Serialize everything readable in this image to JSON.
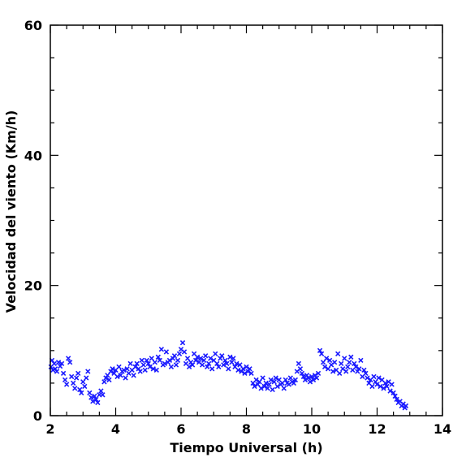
{
  "chart_data": {
    "type": "scatter",
    "title": "",
    "xlabel": "Tiempo Universal (h)",
    "ylabel": "Velocidad del viento (Km/h)",
    "xlim": [
      2,
      14
    ],
    "ylim": [
      0,
      60
    ],
    "xticks": [
      2,
      4,
      6,
      8,
      10,
      12,
      14
    ],
    "yticks": [
      0,
      20,
      40,
      60
    ],
    "x_minor_step": 0.5,
    "y_minor_step": 5,
    "marker": "x",
    "marker_color": "#1a1aff",
    "grid": false,
    "series": [
      {
        "points": [
          [
            2.02,
            7.5
          ],
          [
            2.05,
            8.5
          ],
          [
            2.08,
            7.0
          ],
          [
            2.12,
            8.0
          ],
          [
            2.15,
            7.2
          ],
          [
            2.2,
            6.8
          ],
          [
            2.25,
            8.2
          ],
          [
            2.3,
            7.6
          ],
          [
            2.35,
            8.0
          ],
          [
            2.4,
            6.5
          ],
          [
            2.45,
            5.5
          ],
          [
            2.5,
            4.8
          ],
          [
            2.55,
            8.8
          ],
          [
            2.6,
            8.2
          ],
          [
            2.65,
            6.0
          ],
          [
            2.7,
            5.0
          ],
          [
            2.75,
            4.2
          ],
          [
            2.8,
            5.8
          ],
          [
            2.85,
            6.5
          ],
          [
            2.9,
            4.0
          ],
          [
            2.95,
            3.5
          ],
          [
            3.0,
            5.2
          ],
          [
            3.05,
            4.5
          ],
          [
            3.1,
            5.8
          ],
          [
            3.15,
            6.8
          ],
          [
            3.2,
            3.5
          ],
          [
            3.25,
            2.8
          ],
          [
            3.3,
            2.2
          ],
          [
            3.35,
            3.0
          ],
          [
            3.4,
            2.5
          ],
          [
            3.45,
            2.0
          ],
          [
            3.5,
            3.2
          ],
          [
            3.55,
            3.8
          ],
          [
            3.6,
            3.2
          ],
          [
            3.65,
            5.2
          ],
          [
            3.7,
            5.8
          ],
          [
            3.75,
            6.2
          ],
          [
            3.8,
            5.5
          ],
          [
            3.85,
            6.8
          ],
          [
            3.9,
            7.2
          ],
          [
            3.95,
            6.5
          ],
          [
            4.0,
            7.0
          ],
          [
            4.05,
            6.0
          ],
          [
            4.1,
            7.5
          ],
          [
            4.15,
            6.2
          ],
          [
            4.2,
            6.8
          ],
          [
            4.25,
            7.0
          ],
          [
            4.3,
            5.8
          ],
          [
            4.35,
            7.2
          ],
          [
            4.4,
            6.5
          ],
          [
            4.45,
            8.0
          ],
          [
            4.5,
            7.0
          ],
          [
            4.55,
            6.2
          ],
          [
            4.6,
            7.5
          ],
          [
            4.65,
            8.0
          ],
          [
            4.7,
            7.2
          ],
          [
            4.75,
            6.8
          ],
          [
            4.8,
            8.5
          ],
          [
            4.85,
            7.8
          ],
          [
            4.9,
            7.0
          ],
          [
            4.95,
            8.5
          ],
          [
            5.0,
            8.0
          ],
          [
            5.05,
            7.5
          ],
          [
            5.1,
            8.8
          ],
          [
            5.15,
            7.2
          ],
          [
            5.2,
            8.2
          ],
          [
            5.25,
            7.0
          ],
          [
            5.3,
            9.0
          ],
          [
            5.35,
            8.5
          ],
          [
            5.4,
            10.2
          ],
          [
            5.45,
            7.8
          ],
          [
            5.5,
            8.0
          ],
          [
            5.55,
            9.8
          ],
          [
            5.6,
            8.2
          ],
          [
            5.65,
            8.5
          ],
          [
            5.7,
            7.5
          ],
          [
            5.75,
            8.8
          ],
          [
            5.8,
            9.2
          ],
          [
            5.85,
            7.8
          ],
          [
            5.9,
            8.5
          ],
          [
            5.95,
            9.5
          ],
          [
            6.0,
            10.2
          ],
          [
            6.05,
            11.2
          ],
          [
            6.1,
            9.8
          ],
          [
            6.15,
            8.0
          ],
          [
            6.2,
            8.8
          ],
          [
            6.25,
            7.5
          ],
          [
            6.3,
            8.2
          ],
          [
            6.35,
            7.8
          ],
          [
            6.4,
            9.5
          ],
          [
            6.45,
            8.5
          ],
          [
            6.5,
            9.0
          ],
          [
            6.55,
            8.2
          ],
          [
            6.6,
            8.8
          ],
          [
            6.65,
            7.8
          ],
          [
            6.7,
            8.5
          ],
          [
            6.75,
            9.2
          ],
          [
            6.8,
            7.5
          ],
          [
            6.85,
            8.0
          ],
          [
            6.9,
            8.8
          ],
          [
            6.95,
            7.2
          ],
          [
            7.0,
            8.5
          ],
          [
            7.05,
            9.5
          ],
          [
            7.1,
            8.0
          ],
          [
            7.15,
            7.5
          ],
          [
            7.2,
            8.8
          ],
          [
            7.25,
            9.2
          ],
          [
            7.3,
            7.8
          ],
          [
            7.35,
            8.5
          ],
          [
            7.4,
            8.0
          ],
          [
            7.45,
            7.2
          ],
          [
            7.5,
            9.0
          ],
          [
            7.55,
            8.2
          ],
          [
            7.6,
            8.8
          ],
          [
            7.65,
            7.5
          ],
          [
            7.7,
            8.0
          ],
          [
            7.75,
            7.0
          ],
          [
            7.8,
            7.8
          ],
          [
            7.85,
            6.8
          ],
          [
            7.9,
            7.2
          ],
          [
            7.95,
            6.5
          ],
          [
            8.0,
            7.5
          ],
          [
            8.05,
            6.8
          ],
          [
            8.1,
            7.2
          ],
          [
            8.15,
            6.5
          ],
          [
            8.2,
            5.0
          ],
          [
            8.25,
            4.5
          ],
          [
            8.3,
            5.5
          ],
          [
            8.35,
            4.8
          ],
          [
            8.4,
            5.2
          ],
          [
            8.45,
            4.2
          ],
          [
            8.5,
            5.8
          ],
          [
            8.55,
            4.5
          ],
          [
            8.6,
            5.0
          ],
          [
            8.65,
            4.2
          ],
          [
            8.7,
            4.8
          ],
          [
            8.75,
            5.5
          ],
          [
            8.8,
            4.0
          ],
          [
            8.85,
            5.2
          ],
          [
            8.9,
            5.8
          ],
          [
            8.95,
            4.5
          ],
          [
            9.0,
            5.5
          ],
          [
            9.05,
            4.8
          ],
          [
            9.1,
            5.0
          ],
          [
            9.15,
            4.2
          ],
          [
            9.2,
            5.5
          ],
          [
            9.25,
            5.0
          ],
          [
            9.3,
            4.8
          ],
          [
            9.35,
            5.8
          ],
          [
            9.4,
            5.2
          ],
          [
            9.45,
            5.0
          ],
          [
            9.5,
            5.5
          ],
          [
            9.55,
            6.8
          ],
          [
            9.6,
            8.0
          ],
          [
            9.65,
            7.2
          ],
          [
            9.7,
            6.5
          ],
          [
            9.75,
            6.0
          ],
          [
            9.8,
            5.5
          ],
          [
            9.85,
            6.2
          ],
          [
            9.9,
            5.8
          ],
          [
            9.95,
            5.2
          ],
          [
            10.0,
            6.0
          ],
          [
            10.05,
            5.5
          ],
          [
            10.1,
            6.2
          ],
          [
            10.15,
            5.8
          ],
          [
            10.2,
            6.5
          ],
          [
            10.25,
            10.0
          ],
          [
            10.3,
            9.5
          ],
          [
            10.35,
            8.2
          ],
          [
            10.4,
            7.5
          ],
          [
            10.45,
            8.8
          ],
          [
            10.5,
            7.2
          ],
          [
            10.55,
            8.5
          ],
          [
            10.6,
            7.8
          ],
          [
            10.65,
            6.8
          ],
          [
            10.7,
            8.2
          ],
          [
            10.75,
            7.0
          ],
          [
            10.8,
            9.5
          ],
          [
            10.85,
            6.5
          ],
          [
            10.9,
            8.0
          ],
          [
            10.95,
            7.2
          ],
          [
            11.0,
            8.8
          ],
          [
            11.05,
            6.8
          ],
          [
            11.1,
            7.5
          ],
          [
            11.15,
            8.2
          ],
          [
            11.2,
            9.0
          ],
          [
            11.25,
            7.0
          ],
          [
            11.3,
            8.0
          ],
          [
            11.35,
            7.5
          ],
          [
            11.4,
            6.8
          ],
          [
            11.45,
            7.2
          ],
          [
            11.5,
            8.5
          ],
          [
            11.55,
            6.0
          ],
          [
            11.6,
            7.0
          ],
          [
            11.65,
            6.5
          ],
          [
            11.7,
            5.8
          ],
          [
            11.75,
            5.0
          ],
          [
            11.8,
            5.5
          ],
          [
            11.85,
            4.5
          ],
          [
            11.9,
            6.0
          ],
          [
            11.95,
            5.2
          ],
          [
            12.0,
            4.8
          ],
          [
            12.05,
            5.8
          ],
          [
            12.1,
            4.5
          ],
          [
            12.15,
            5.5
          ],
          [
            12.2,
            4.2
          ],
          [
            12.25,
            5.0
          ],
          [
            12.3,
            4.5
          ],
          [
            12.35,
            5.2
          ],
          [
            12.4,
            3.8
          ],
          [
            12.45,
            4.8
          ],
          [
            12.5,
            3.5
          ],
          [
            12.55,
            3.0
          ],
          [
            12.6,
            2.5
          ],
          [
            12.65,
            2.0
          ],
          [
            12.7,
            2.2
          ],
          [
            12.75,
            1.5
          ],
          [
            12.8,
            1.8
          ],
          [
            12.85,
            1.2
          ],
          [
            12.88,
            1.5
          ]
        ]
      }
    ]
  }
}
